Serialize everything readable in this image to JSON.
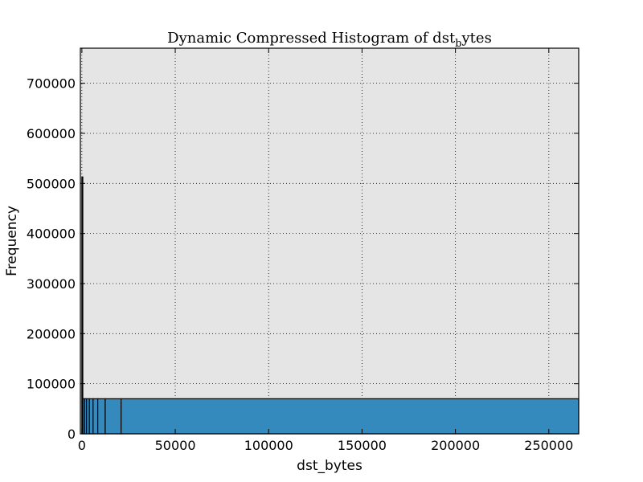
{
  "chart_data": {
    "type": "bar",
    "title_main": "Dynamic Compressed Histogram of dst",
    "title_subscript": "b",
    "title_suffix": "ytes",
    "xlabel": "dst_bytes",
    "ylabel": "Frequency",
    "xlim": [
      -800,
      266000
    ],
    "ylim": [
      0,
      770000
    ],
    "xticks": [
      0,
      50000,
      100000,
      150000,
      200000,
      250000
    ],
    "xtick_labels": [
      "0",
      "50000",
      "100000",
      "150000",
      "200000",
      "250000"
    ],
    "yticks": [
      0,
      100000,
      200000,
      300000,
      400000,
      500000,
      600000,
      700000
    ],
    "ytick_labels": [
      "0",
      "100000",
      "200000",
      "300000",
      "400000",
      "500000",
      "600000",
      "700000"
    ],
    "grid": true,
    "bar_color": "#348abd",
    "bins": [
      {
        "x0": 0,
        "x1": 500,
        "value": 513000
      },
      {
        "x0": 500,
        "x1": 1500,
        "value": 70000
      },
      {
        "x0": 1500,
        "x1": 2500,
        "value": 70000
      },
      {
        "x0": 2500,
        "x1": 4000,
        "value": 70000
      },
      {
        "x0": 4000,
        "x1": 6000,
        "value": 70000
      },
      {
        "x0": 6000,
        "x1": 8500,
        "value": 70000
      },
      {
        "x0": 8500,
        "x1": 12500,
        "value": 70000
      },
      {
        "x0": 12500,
        "x1": 21000,
        "value": 70000
      },
      {
        "x0": 21000,
        "x1": 266000,
        "value": 70000
      }
    ]
  }
}
